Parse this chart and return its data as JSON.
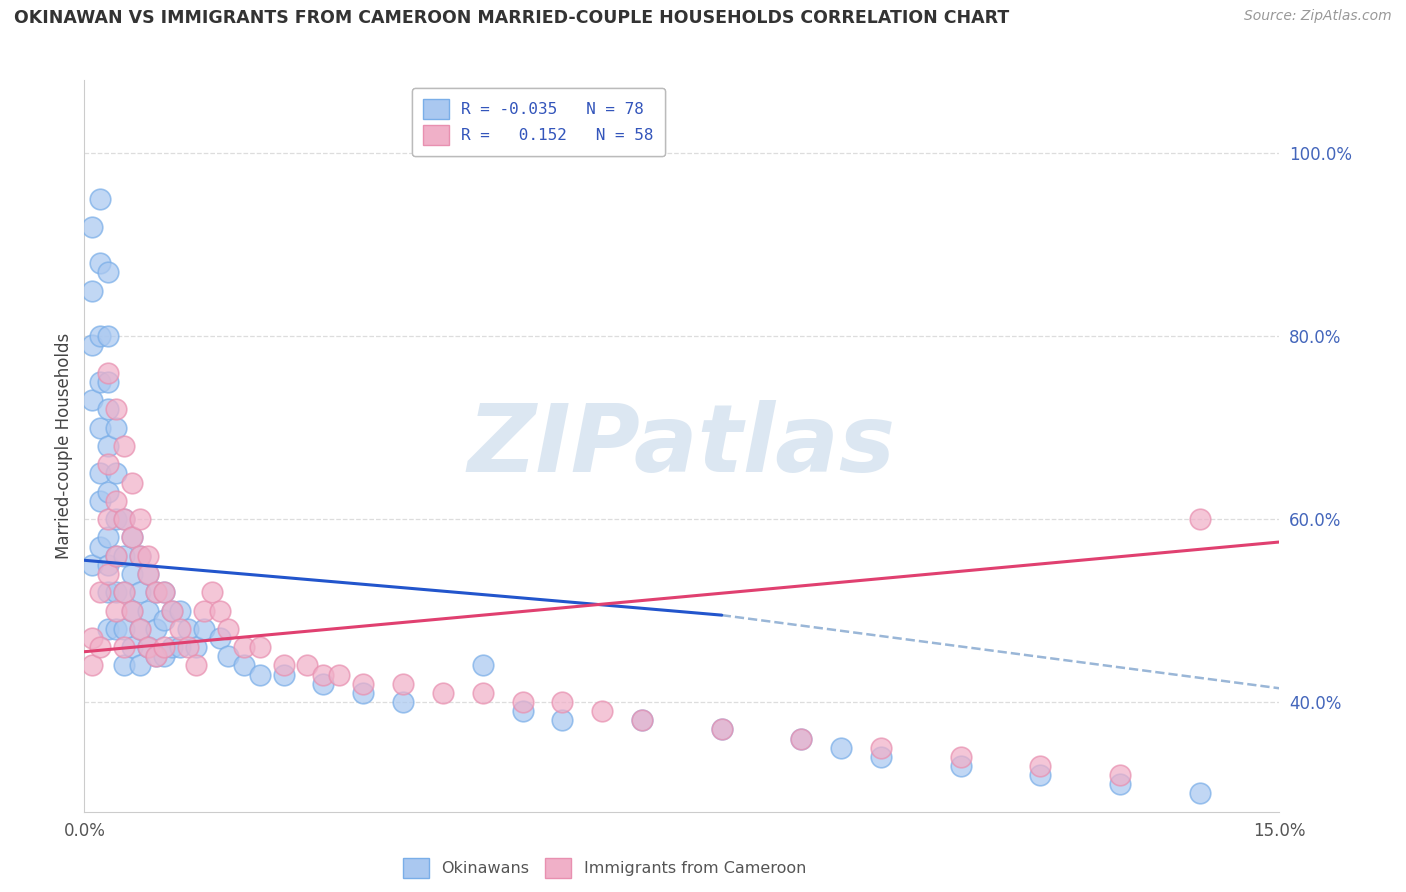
{
  "title": "OKINAWAN VS IMMIGRANTS FROM CAMEROON MARRIED-COUPLE HOUSEHOLDS CORRELATION CHART",
  "source": "Source: ZipAtlas.com",
  "ylabel": "Married-couple Households",
  "y_ticks": [
    0.4,
    0.6,
    0.8,
    1.0
  ],
  "y_tick_labels": [
    "40.0%",
    "60.0%",
    "80.0%",
    "100.0%"
  ],
  "x_ticks": [
    0.0,
    0.15
  ],
  "x_tick_labels": [
    "0.0%",
    "15.0%"
  ],
  "x_range": [
    0.0,
    0.15
  ],
  "y_range": [
    0.28,
    1.08
  ],
  "okinawan_scatter_color": "#aac8f0",
  "okinawan_edge_color": "#7aaee8",
  "cameroon_scatter_color": "#f0b0c8",
  "cameroon_edge_color": "#e890b0",
  "okinawan_line_color": "#2255cc",
  "cameroon_line_color": "#e04070",
  "dashed_line_color": "#88aad0",
  "grid_color": "#dddddd",
  "title_color": "#333333",
  "source_color": "#999999",
  "watermark_text": "ZIPatlas",
  "watermark_color": "#c0d4e8",
  "legend_text_color": "#3355bb",
  "ok_x": [
    0.001,
    0.001,
    0.001,
    0.001,
    0.001,
    0.002,
    0.002,
    0.002,
    0.002,
    0.002,
    0.002,
    0.002,
    0.003,
    0.003,
    0.003,
    0.003,
    0.003,
    0.003,
    0.003,
    0.003,
    0.003,
    0.004,
    0.004,
    0.004,
    0.004,
    0.004,
    0.004,
    0.005,
    0.005,
    0.005,
    0.005,
    0.005,
    0.006,
    0.006,
    0.006,
    0.006,
    0.007,
    0.007,
    0.007,
    0.007,
    0.008,
    0.008,
    0.008,
    0.009,
    0.009,
    0.009,
    0.01,
    0.01,
    0.01,
    0.011,
    0.011,
    0.012,
    0.012,
    0.013,
    0.014,
    0.015,
    0.017,
    0.018,
    0.02,
    0.022,
    0.025,
    0.03,
    0.035,
    0.04,
    0.055,
    0.06,
    0.07,
    0.08,
    0.09,
    0.095,
    0.1,
    0.11,
    0.12,
    0.13,
    0.14,
    0.002,
    0.003,
    0.05
  ],
  "ok_y": [
    0.92,
    0.85,
    0.79,
    0.73,
    0.55,
    0.88,
    0.8,
    0.75,
    0.7,
    0.65,
    0.62,
    0.57,
    0.8,
    0.75,
    0.72,
    0.68,
    0.63,
    0.58,
    0.55,
    0.52,
    0.48,
    0.7,
    0.65,
    0.6,
    0.56,
    0.52,
    0.48,
    0.6,
    0.56,
    0.52,
    0.48,
    0.44,
    0.58,
    0.54,
    0.5,
    0.46,
    0.56,
    0.52,
    0.48,
    0.44,
    0.54,
    0.5,
    0.46,
    0.52,
    0.48,
    0.45,
    0.52,
    0.49,
    0.45,
    0.5,
    0.46,
    0.5,
    0.46,
    0.48,
    0.46,
    0.48,
    0.47,
    0.45,
    0.44,
    0.43,
    0.43,
    0.42,
    0.41,
    0.4,
    0.39,
    0.38,
    0.38,
    0.37,
    0.36,
    0.35,
    0.34,
    0.33,
    0.32,
    0.31,
    0.3,
    0.95,
    0.87,
    0.44
  ],
  "cam_x": [
    0.001,
    0.001,
    0.002,
    0.002,
    0.003,
    0.003,
    0.003,
    0.004,
    0.004,
    0.004,
    0.005,
    0.005,
    0.005,
    0.006,
    0.006,
    0.007,
    0.007,
    0.008,
    0.008,
    0.009,
    0.009,
    0.01,
    0.01,
    0.011,
    0.012,
    0.013,
    0.014,
    0.015,
    0.016,
    0.017,
    0.018,
    0.02,
    0.022,
    0.025,
    0.028,
    0.03,
    0.032,
    0.035,
    0.04,
    0.045,
    0.05,
    0.055,
    0.06,
    0.065,
    0.07,
    0.08,
    0.09,
    0.1,
    0.11,
    0.12,
    0.13,
    0.14,
    0.003,
    0.004,
    0.005,
    0.006,
    0.007,
    0.008
  ],
  "cam_y": [
    0.47,
    0.44,
    0.52,
    0.46,
    0.66,
    0.6,
    0.54,
    0.62,
    0.56,
    0.5,
    0.6,
    0.52,
    0.46,
    0.58,
    0.5,
    0.56,
    0.48,
    0.54,
    0.46,
    0.52,
    0.45,
    0.52,
    0.46,
    0.5,
    0.48,
    0.46,
    0.44,
    0.5,
    0.52,
    0.5,
    0.48,
    0.46,
    0.46,
    0.44,
    0.44,
    0.43,
    0.43,
    0.42,
    0.42,
    0.41,
    0.41,
    0.4,
    0.4,
    0.39,
    0.38,
    0.37,
    0.36,
    0.35,
    0.34,
    0.33,
    0.32,
    0.6,
    0.76,
    0.72,
    0.68,
    0.64,
    0.6,
    0.56
  ],
  "blue_line_x0": 0.0,
  "blue_line_x1": 0.08,
  "blue_line_y0": 0.555,
  "blue_line_y1": 0.495,
  "pink_line_x0": 0.0,
  "pink_line_x1": 0.15,
  "pink_line_y0": 0.455,
  "pink_line_y1": 0.575,
  "dash_line_x0": 0.08,
  "dash_line_x1": 0.15,
  "dash_line_y0": 0.495,
  "dash_line_y1": 0.415
}
